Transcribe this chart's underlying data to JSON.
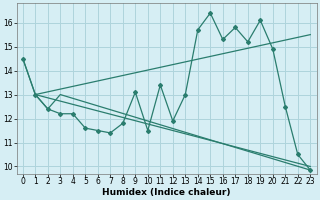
{
  "xlabel": "Humidex (Indice chaleur)",
  "bg_color": "#d6eef4",
  "line_color": "#2a7d6e",
  "grid_color": "#aed4dc",
  "xlim": [
    -0.5,
    23.5
  ],
  "ylim": [
    9.7,
    16.8
  ],
  "yticks": [
    10,
    11,
    12,
    13,
    14,
    15,
    16
  ],
  "xticks": [
    0,
    1,
    2,
    3,
    4,
    5,
    6,
    7,
    8,
    9,
    10,
    11,
    12,
    13,
    14,
    15,
    16,
    17,
    18,
    19,
    20,
    21,
    22,
    23
  ],
  "main_x": [
    0,
    1,
    2,
    3,
    4,
    5,
    6,
    7,
    8,
    9,
    10,
    11,
    12,
    13,
    14,
    15,
    16,
    17,
    18,
    19,
    20,
    21,
    22,
    23
  ],
  "main_y": [
    14.5,
    13.0,
    12.4,
    12.2,
    12.2,
    11.6,
    11.5,
    11.4,
    11.8,
    13.1,
    11.5,
    13.4,
    11.9,
    13.0,
    15.7,
    16.4,
    15.3,
    15.8,
    15.2,
    16.1,
    14.9,
    12.5,
    10.5,
    9.85
  ],
  "upper_trend_x": [
    1,
    23
  ],
  "upper_trend_y": [
    13.0,
    15.5
  ],
  "lower_trend_x": [
    1,
    23
  ],
  "lower_trend_y": [
    13.0,
    10.0
  ],
  "envelope_x": [
    0,
    1,
    2,
    3,
    23
  ],
  "envelope_y": [
    14.5,
    13.0,
    12.4,
    13.0,
    9.85
  ]
}
